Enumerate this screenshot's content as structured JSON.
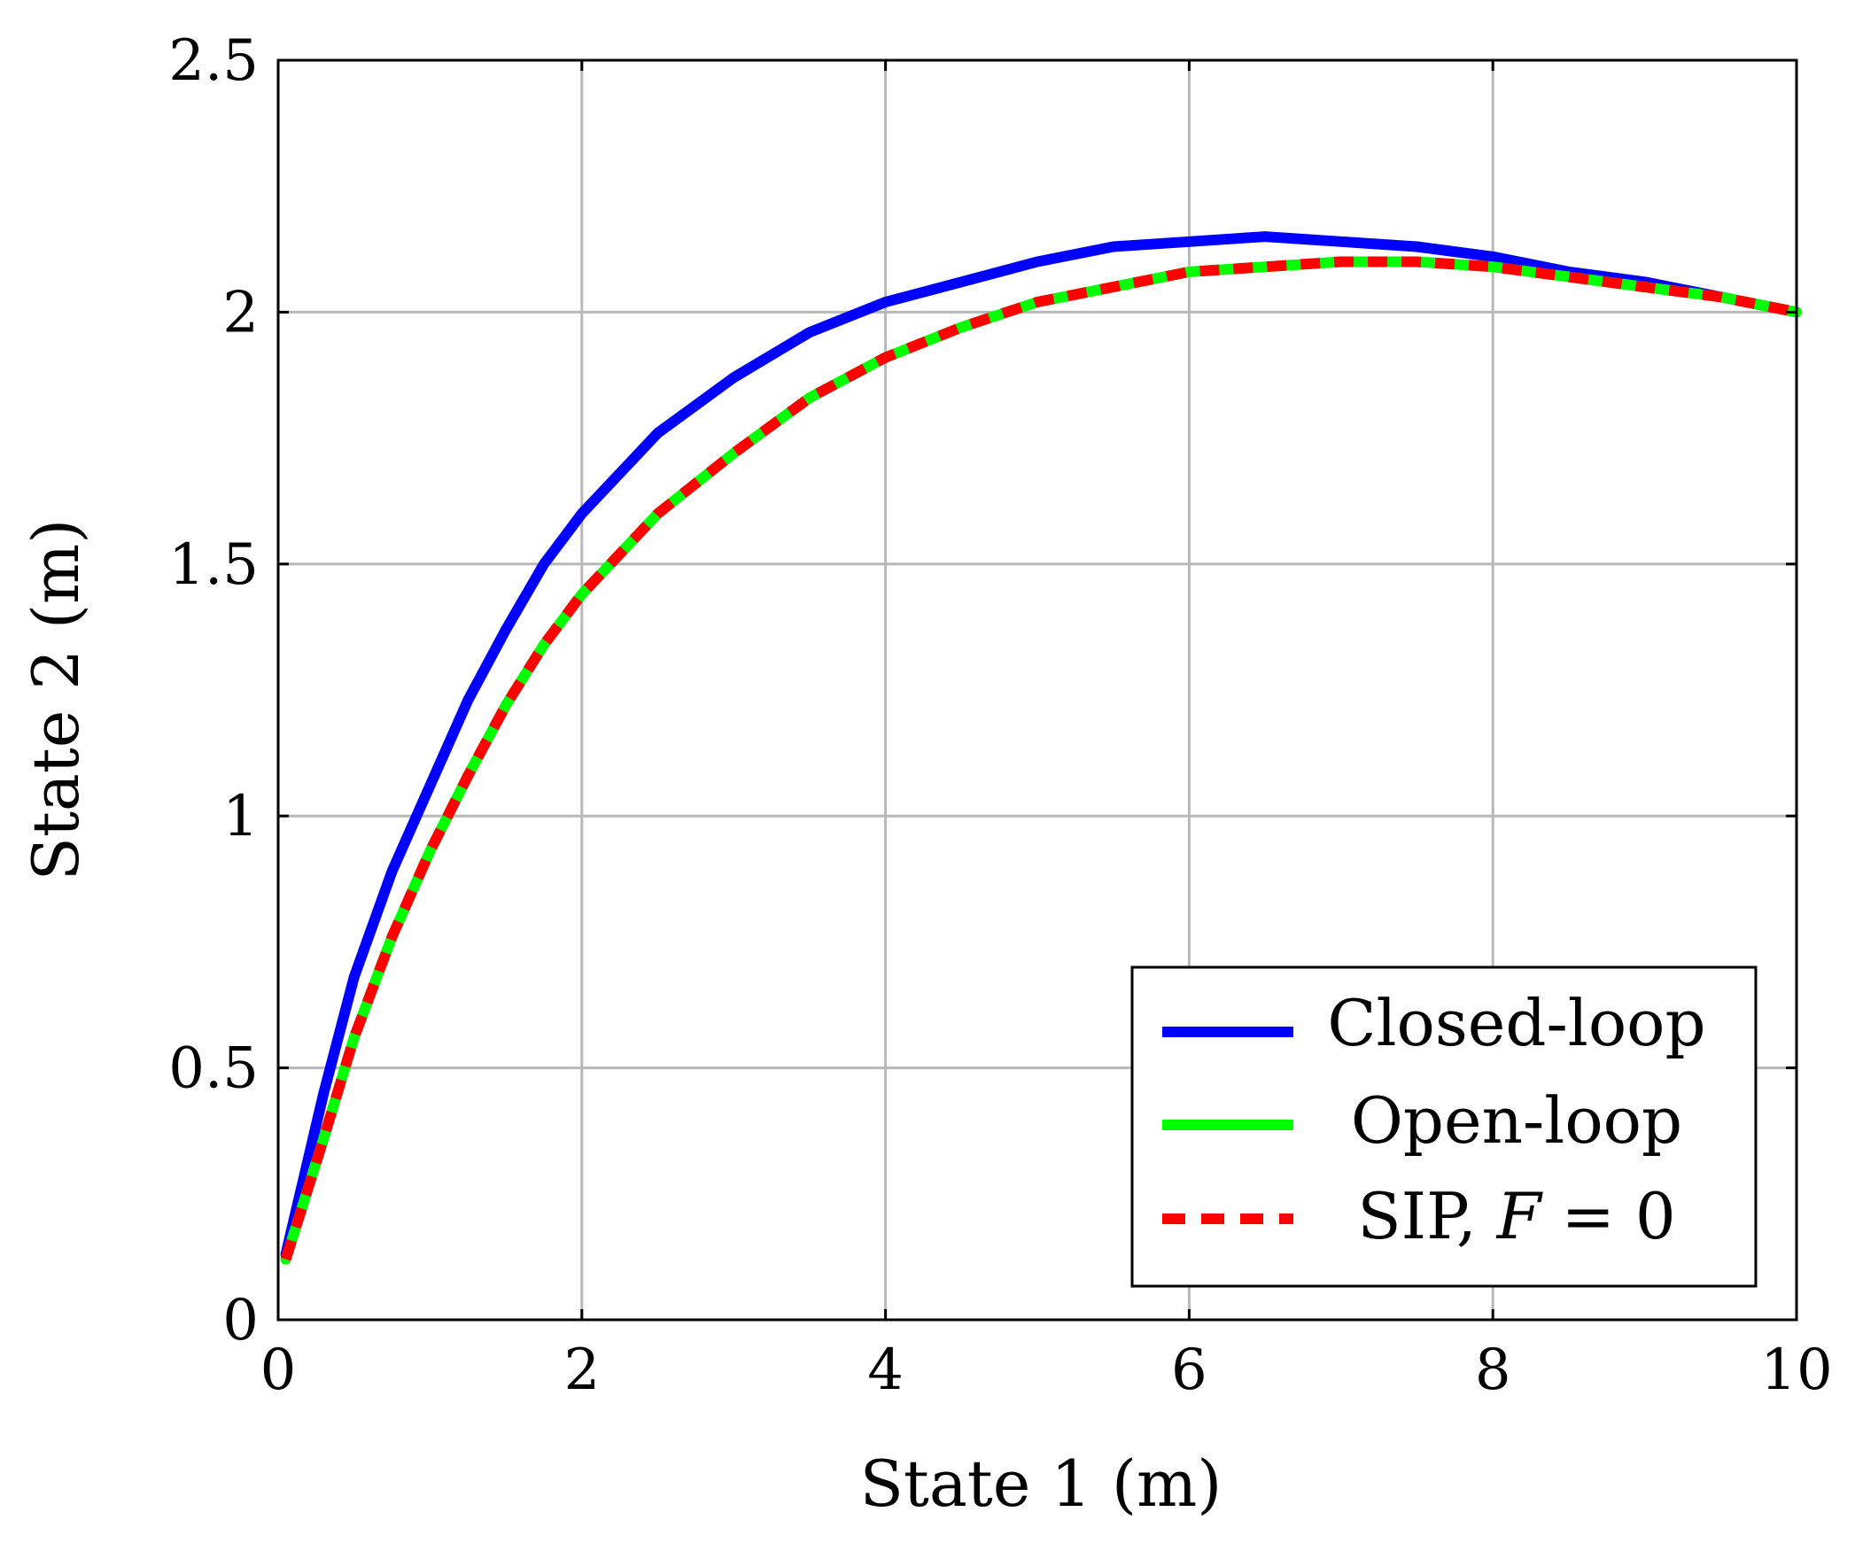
{
  "chart_data": {
    "type": "line",
    "xlabel": "State 1 (m)",
    "ylabel": "State 2 (m)",
    "xlim": [
      0,
      10
    ],
    "ylim": [
      0,
      2.5
    ],
    "xticks": [
      "0",
      "2",
      "4",
      "6",
      "8",
      "10"
    ],
    "yticks": [
      "0",
      "0.5",
      "1",
      "1.5",
      "2",
      "2.5"
    ],
    "grid": true,
    "legend_position": "bottom-right",
    "series": [
      {
        "name": "Closed-loop",
        "color": "#0000ff",
        "style": "solid",
        "x": [
          0.05,
          0.3,
          0.5,
          0.75,
          1.0,
          1.25,
          1.5,
          1.75,
          2.0,
          2.5,
          3.0,
          3.5,
          4.0,
          4.5,
          5.0,
          5.5,
          6.0,
          6.5,
          7.0,
          7.5,
          8.0,
          8.5,
          9.0,
          9.5,
          10.0
        ],
        "y": [
          0.13,
          0.45,
          0.68,
          0.89,
          1.06,
          1.23,
          1.37,
          1.5,
          1.6,
          1.76,
          1.87,
          1.96,
          2.02,
          2.06,
          2.1,
          2.13,
          2.14,
          2.15,
          2.14,
          2.13,
          2.11,
          2.08,
          2.06,
          2.03,
          2.0
        ]
      },
      {
        "name": "Open-loop",
        "color": "#00ff00",
        "style": "solid",
        "x": [
          0.05,
          0.3,
          0.5,
          0.75,
          1.0,
          1.25,
          1.5,
          1.75,
          2.0,
          2.5,
          3.0,
          3.5,
          4.0,
          4.5,
          5.0,
          5.5,
          6.0,
          6.5,
          7.0,
          7.5,
          8.0,
          8.5,
          9.0,
          9.5,
          10.0
        ],
        "y": [
          0.12,
          0.36,
          0.56,
          0.76,
          0.93,
          1.08,
          1.22,
          1.34,
          1.44,
          1.6,
          1.72,
          1.83,
          1.91,
          1.97,
          2.02,
          2.05,
          2.08,
          2.09,
          2.1,
          2.1,
          2.09,
          2.07,
          2.05,
          2.03,
          2.0
        ]
      },
      {
        "name": "SIP, F = 0",
        "color": "#ff0000",
        "style": "dashed",
        "x": [
          0.05,
          0.3,
          0.5,
          0.75,
          1.0,
          1.25,
          1.5,
          1.75,
          2.0,
          2.5,
          3.0,
          3.5,
          4.0,
          4.5,
          5.0,
          5.5,
          6.0,
          6.5,
          7.0,
          7.5,
          8.0,
          8.5,
          9.0,
          9.5,
          10.0
        ],
        "y": [
          0.12,
          0.36,
          0.56,
          0.76,
          0.93,
          1.08,
          1.22,
          1.34,
          1.44,
          1.6,
          1.72,
          1.83,
          1.91,
          1.97,
          2.02,
          2.05,
          2.08,
          2.09,
          2.1,
          2.1,
          2.09,
          2.07,
          2.05,
          2.03,
          2.0
        ]
      }
    ]
  },
  "legend": {
    "entries": [
      {
        "label": "Closed-loop"
      },
      {
        "label": "Open-loop"
      },
      {
        "label_prefix": "SIP, ",
        "label_var": "F",
        "label_suffix": " = 0"
      }
    ]
  }
}
